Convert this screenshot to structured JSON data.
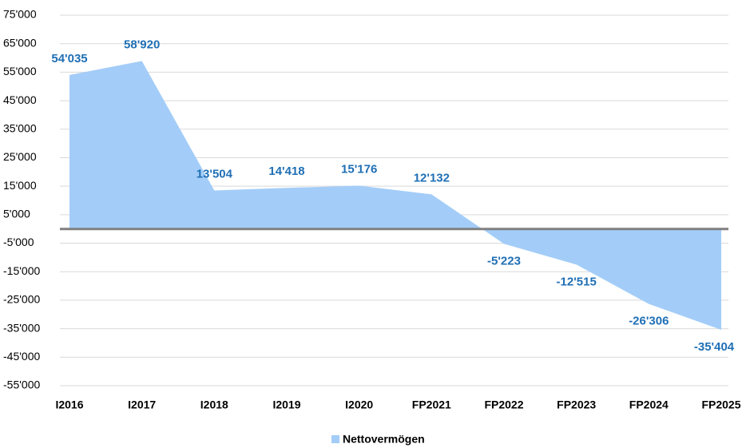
{
  "chart_data": {
    "type": "area",
    "categories": [
      "I2016",
      "I2017",
      "I2018",
      "I2019",
      "I2020",
      "FP2021",
      "FP2022",
      "FP2023",
      "FP2024",
      "FP2025"
    ],
    "series": [
      {
        "name": "Nettovermögen",
        "color": "#a3cdf8",
        "values": [
          54035,
          58920,
          13504,
          14418,
          15176,
          12132,
          -5223,
          -12515,
          -26306,
          -35404
        ],
        "value_labels": [
          "54'035",
          "58'920",
          "13'504",
          "14'418",
          "15'176",
          "12'132",
          "-5'223",
          "-12'515",
          "-26'306",
          "-35'404"
        ]
      }
    ],
    "label_color": "#1f6fb5",
    "ylim": [
      -55000,
      75000
    ],
    "yticks": [
      {
        "value": -55000,
        "label": "-55'000"
      },
      {
        "value": -45000,
        "label": "-45'000"
      },
      {
        "value": -35000,
        "label": "-35'000"
      },
      {
        "value": -25000,
        "label": "-25'000"
      },
      {
        "value": -15000,
        "label": "-15'000"
      },
      {
        "value": -5000,
        "label": "-5'000"
      },
      {
        "value": 5000,
        "label": "5'000"
      },
      {
        "value": 15000,
        "label": "15'000"
      },
      {
        "value": 25000,
        "label": "25'000"
      },
      {
        "value": 35000,
        "label": "35'000"
      },
      {
        "value": 45000,
        "label": "45'000"
      },
      {
        "value": 55000,
        "label": "55'000"
      },
      {
        "value": 65000,
        "label": "65'000"
      },
      {
        "value": 75000,
        "label": "75'000"
      }
    ],
    "grid": true,
    "legend": "bottom"
  }
}
